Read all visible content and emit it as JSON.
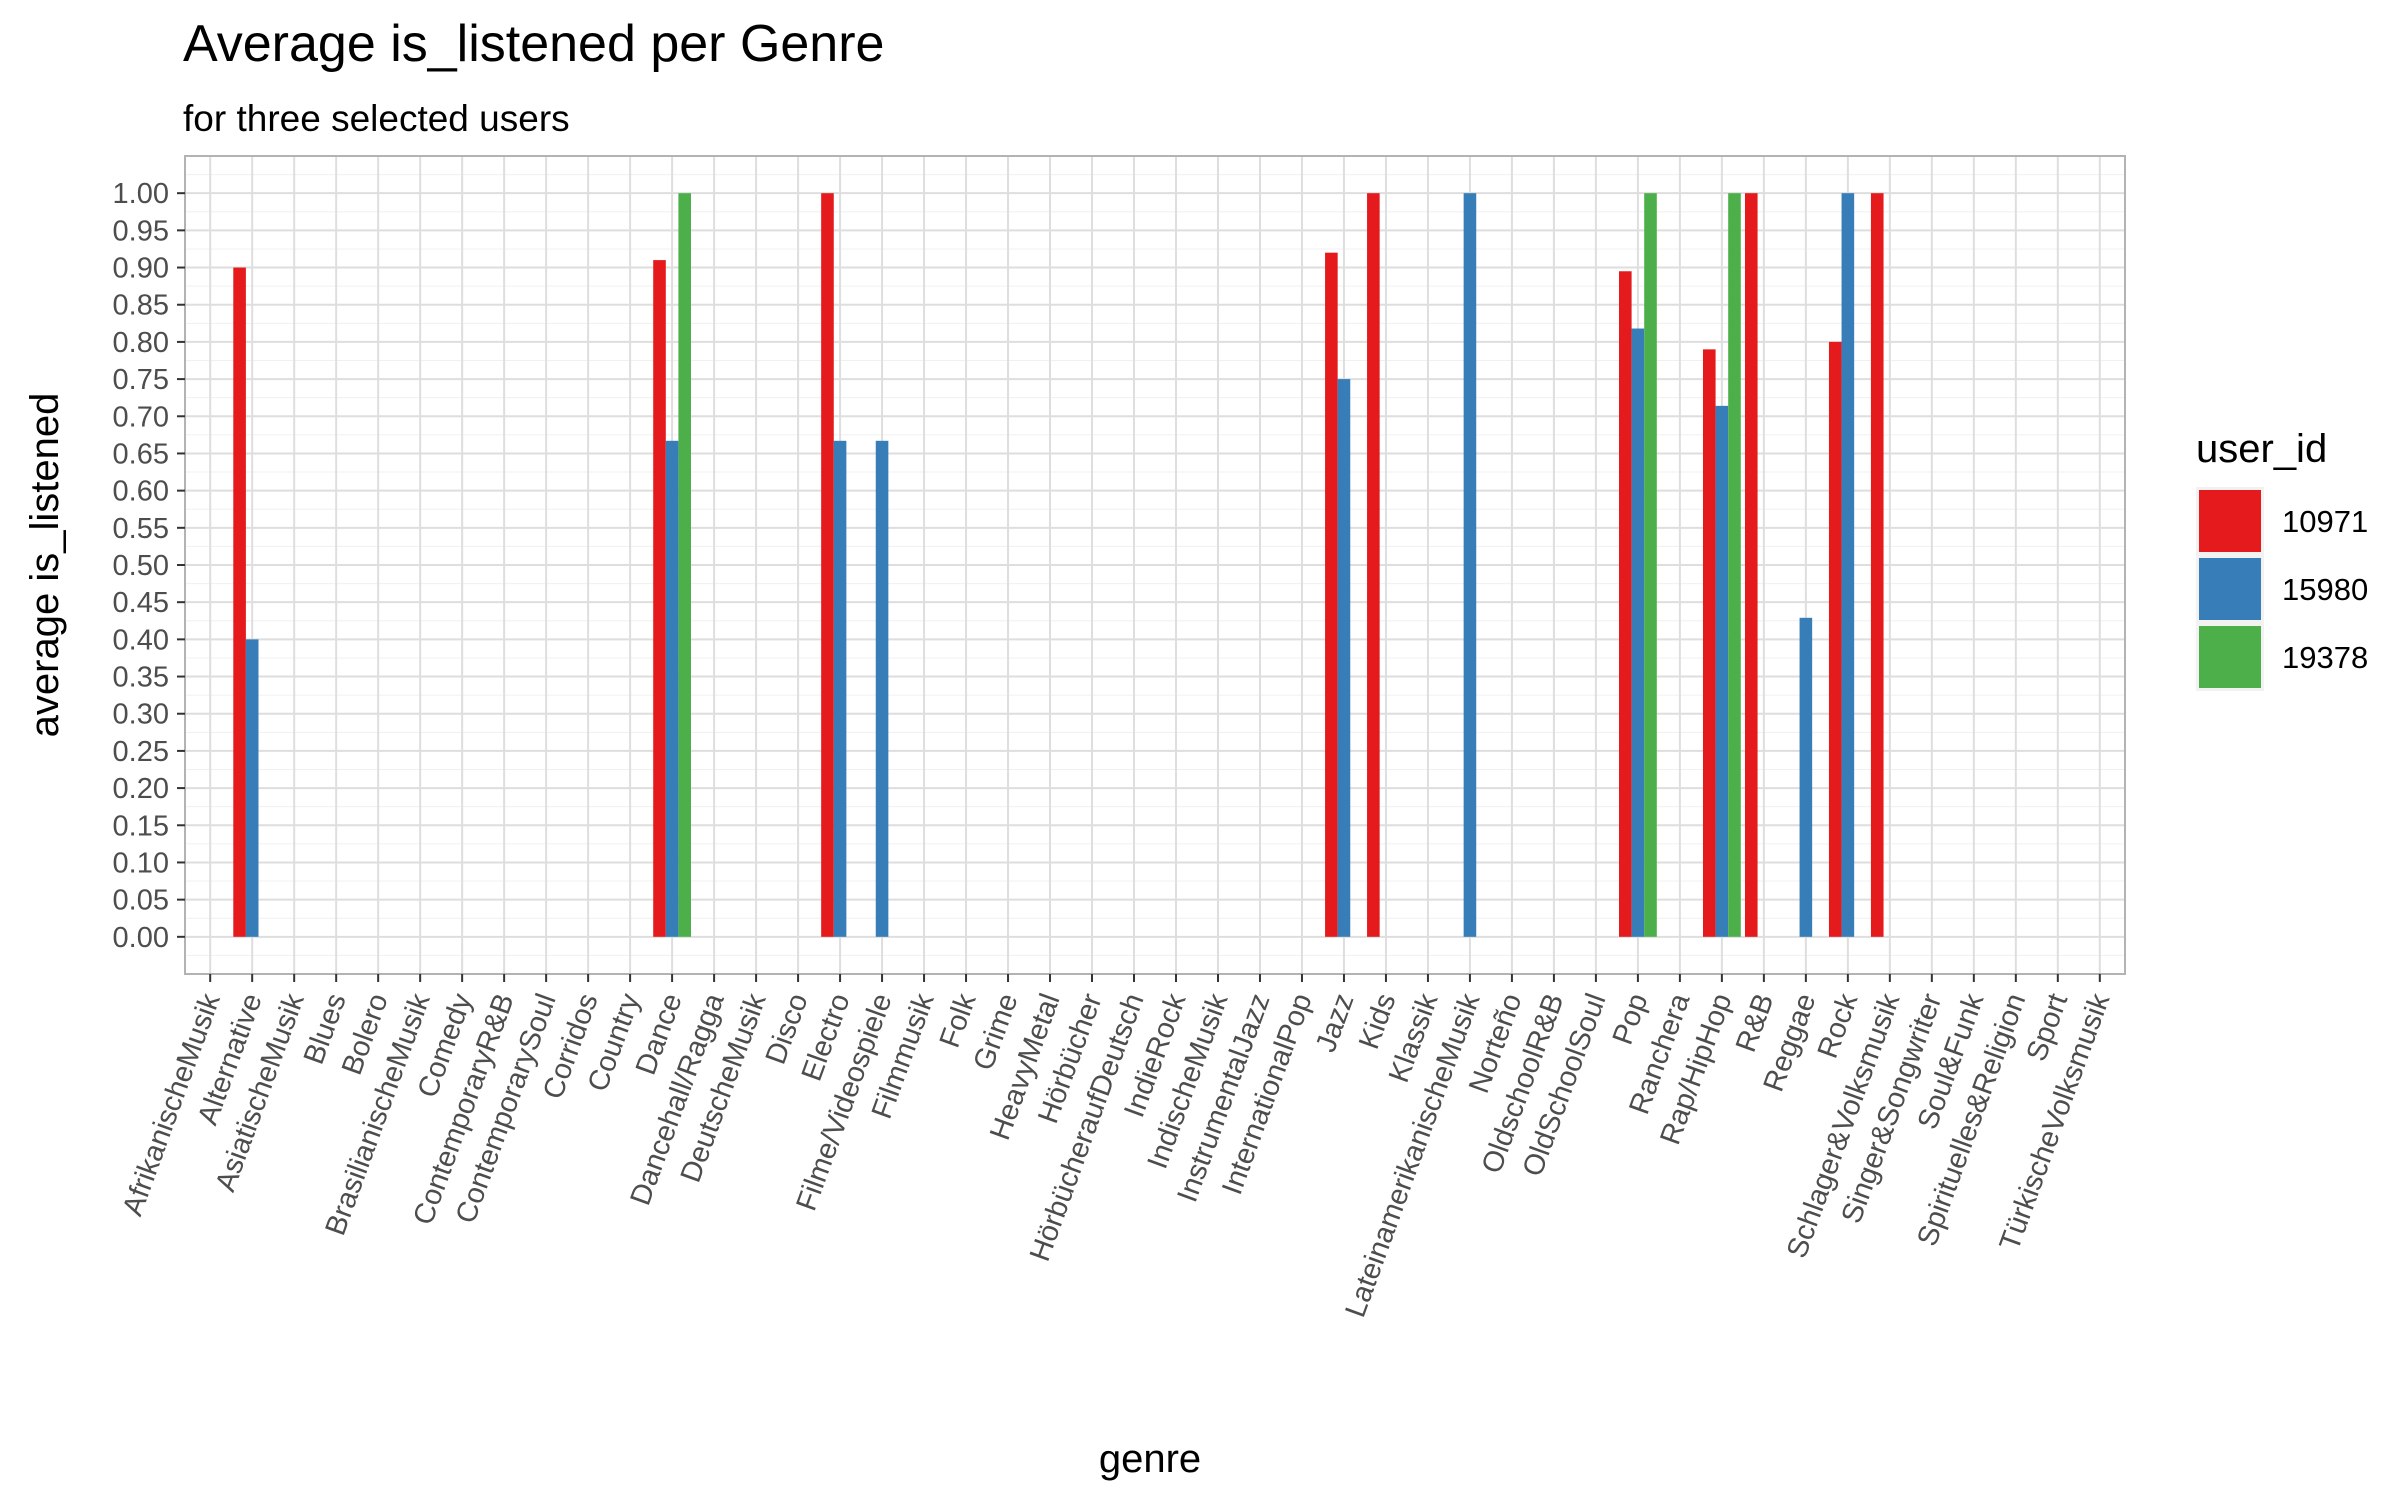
{
  "chart_data": {
    "type": "bar",
    "title": "Average is_listened per Genre",
    "subtitle": "for three selected users",
    "xlabel": "genre",
    "ylabel": "average is_listened",
    "ylim": [
      -0.05,
      1.05
    ],
    "yticks": [
      "0.00",
      "0.05",
      "0.10",
      "0.15",
      "0.20",
      "0.25",
      "0.30",
      "0.35",
      "0.40",
      "0.45",
      "0.50",
      "0.55",
      "0.60",
      "0.65",
      "0.70",
      "0.75",
      "0.80",
      "0.85",
      "0.90",
      "0.95",
      "1.00"
    ],
    "grid": true,
    "legend": {
      "title": "user_id",
      "placement": "right"
    },
    "categories": [
      "AfrikanischeMusik",
      "Alternative",
      "AsiatischeMusik",
      "Blues",
      "Bolero",
      "BrasilianischeMusik",
      "Comedy",
      "ContemporaryR&B",
      "ContemporarySoul",
      "Corridos",
      "Country",
      "Dance",
      "Dancehall/Ragga",
      "DeutscheMusik",
      "Disco",
      "Electro",
      "Filme/Videospiele",
      "Filmmusik",
      "Folk",
      "Grime",
      "HeavyMetal",
      "Hörbücher",
      "HörbücheraufDeutsch",
      "IndieRock",
      "IndischeMusik",
      "InstrumentalJazz",
      "InternationalPop",
      "Jazz",
      "Kids",
      "Klassik",
      "LateinamerikanischeMusik",
      "Norteño",
      "OldschoolR&B",
      "OldSchoolSoul",
      "Pop",
      "Ranchera",
      "Rap/HipHop",
      "R&B",
      "Reggae",
      "Rock",
      "Schlager&Volksmusik",
      "Singer&Songwriter",
      "Soul&Funk",
      "Spirituelles&Religion",
      "Sport",
      "TürkischeVolksmusik"
    ],
    "bars": [
      {
        "category": "Alternative",
        "series": "10971",
        "value": 0.9
      },
      {
        "category": "Alternative",
        "series": "15980",
        "value": 0.4
      },
      {
        "category": "Dance",
        "series": "10971",
        "value": 0.91
      },
      {
        "category": "Dance",
        "series": "15980",
        "value": 0.667
      },
      {
        "category": "Dance",
        "series": "19378",
        "value": 1.0
      },
      {
        "category": "Electro",
        "series": "10971",
        "value": 1.0
      },
      {
        "category": "Electro",
        "series": "15980",
        "value": 0.667
      },
      {
        "category": "Filme/Videospiele",
        "series": "15980",
        "value": 0.667
      },
      {
        "category": "Jazz",
        "series": "10971",
        "value": 0.92
      },
      {
        "category": "Jazz",
        "series": "15980",
        "value": 0.75
      },
      {
        "category": "Kids",
        "series": "10971",
        "value": 1.0
      },
      {
        "category": "LateinamerikanischeMusik",
        "series": "15980",
        "value": 1.0
      },
      {
        "category": "Pop",
        "series": "10971",
        "value": 0.895
      },
      {
        "category": "Pop",
        "series": "15980",
        "value": 0.818
      },
      {
        "category": "Pop",
        "series": "19378",
        "value": 1.0
      },
      {
        "category": "Rap/HipHop",
        "series": "10971",
        "value": 0.79
      },
      {
        "category": "Rap/HipHop",
        "series": "15980",
        "value": 0.714
      },
      {
        "category": "Rap/HipHop",
        "series": "19378",
        "value": 1.0
      },
      {
        "category": "R&B",
        "series": "10971",
        "value": 1.0
      },
      {
        "category": "Reggae",
        "series": "15980",
        "value": 0.429
      },
      {
        "category": "Rock",
        "series": "10971",
        "value": 0.8
      },
      {
        "category": "Rock",
        "series": "15980",
        "value": 1.0
      },
      {
        "category": "Schlager&Volksmusik",
        "series": "10971",
        "value": 1.0
      }
    ],
    "series": [
      {
        "name": "10971",
        "color": "#E41A1C"
      },
      {
        "name": "15980",
        "color": "#377EB8"
      },
      {
        "name": "19378",
        "color": "#4DAF4A"
      }
    ]
  }
}
